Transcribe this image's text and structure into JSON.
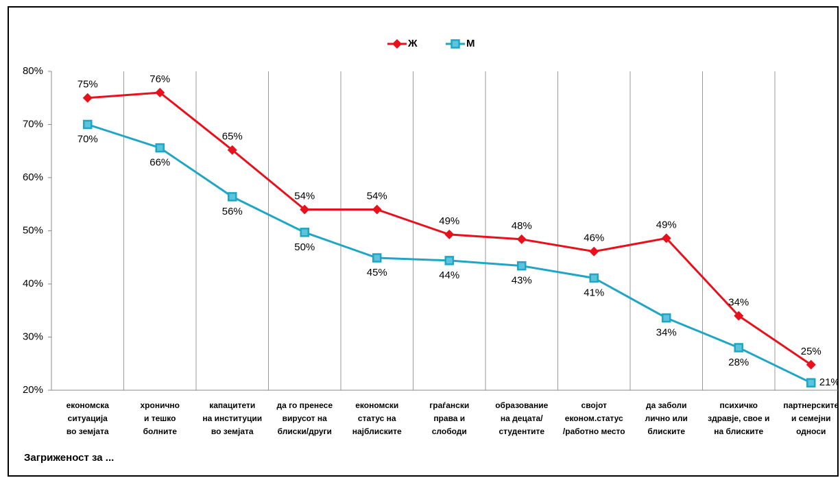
{
  "chart_data": {
    "type": "line",
    "x_label": "Загриженост за ...",
    "categories": [
      [
        "економска",
        "ситуација",
        "во земјата"
      ],
      [
        "хронично",
        "и тешко",
        "болните"
      ],
      [
        "капацитети",
        "на институции",
        "во земјата"
      ],
      [
        "да го пренесе",
        "вирусот на",
        "блиски/други"
      ],
      [
        "економски",
        "статус на",
        "најблиските"
      ],
      [
        "граѓански",
        "права и",
        "слободи"
      ],
      [
        "образование",
        "на децата/",
        "студентите"
      ],
      [
        "својот",
        "економ.статус",
        "/работно место"
      ],
      [
        "да заболи",
        "лично или",
        "блиските"
      ],
      [
        "психичко",
        "здравје, свое и",
        "на блиските"
      ],
      [
        "партнерските",
        "и семејни",
        "односи"
      ]
    ],
    "series": [
      {
        "name": "Ж",
        "color": "#e8101a",
        "marker": "diamond",
        "values": [
          75,
          76,
          65.2,
          54,
          54,
          49.3,
          48.4,
          46.1,
          48.6,
          34,
          24.8
        ],
        "value_labels": [
          "75%",
          "76%",
          "65%",
          "54%",
          "54%",
          "49%",
          "48%",
          "46%",
          "49%",
          "34%",
          "25%"
        ]
      },
      {
        "name": "М",
        "color": "#1ea6c4",
        "marker": "square",
        "values": [
          70,
          65.6,
          56.4,
          49.7,
          44.9,
          44.4,
          43.4,
          41.1,
          33.6,
          28,
          21.4
        ],
        "value_labels": [
          "70%",
          "66%",
          "56%",
          "50%",
          "45%",
          "44%",
          "43%",
          "41%",
          "34%",
          "28%",
          "21%"
        ]
      }
    ],
    "ylim": [
      20,
      80
    ],
    "yticks": [
      {
        "value": 20,
        "label": "20%"
      },
      {
        "value": 30,
        "label": "30%"
      },
      {
        "value": 40,
        "label": "40%"
      },
      {
        "value": 50,
        "label": "50%"
      },
      {
        "value": 60,
        "label": "60%"
      },
      {
        "value": 70,
        "label": "70%"
      },
      {
        "value": 80,
        "label": "80%"
      }
    ],
    "grid": "vertical",
    "legend": "top"
  }
}
